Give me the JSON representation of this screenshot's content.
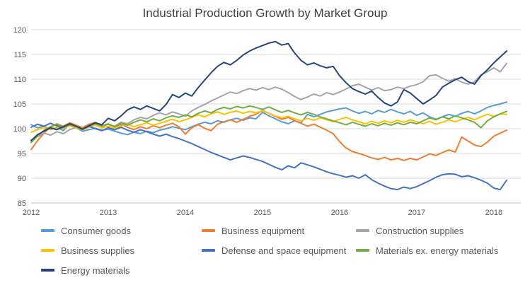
{
  "chart_data": {
    "type": "line",
    "title": "Industrial Production Growth by Market Group",
    "x_unit": "monthly, decimal years",
    "x_start_year": 2012,
    "points_per_year": 12,
    "xlim": [
      2012,
      2018.35
    ],
    "ylim": [
      85,
      120
    ],
    "y_ticks": [
      85,
      90,
      95,
      100,
      105,
      110,
      115,
      120
    ],
    "x_ticks": [
      2012,
      2013,
      2014,
      2015,
      2016,
      2017,
      2018
    ],
    "grid": "horizontal",
    "grid_color": "#D9D9D9",
    "axis_color": "#BFBFBF",
    "legend_position": "bottom",
    "series": [
      {
        "id": "consumer-goods",
        "name": "Consumer goods",
        "color": "#5B9BD5",
        "values": [
          100.8,
          100.2,
          100.5,
          99.8,
          100.3,
          99.6,
          100.9,
          100.2,
          99.5,
          99.8,
          100.1,
          99.7,
          99.9,
          99.5,
          99.1,
          98.8,
          99.3,
          99.0,
          99.5,
          99.2,
          99.7,
          100.0,
          100.4,
          100.1,
          99.8,
          100.4,
          100.9,
          101.3,
          101.0,
          101.6,
          101.3,
          101.8,
          102.1,
          101.7,
          102.2,
          102.0,
          103.3,
          102.6,
          102.0,
          101.4,
          101.0,
          101.6,
          101.2,
          102.9,
          102.4,
          102.9,
          103.4,
          103.7,
          104.0,
          104.2,
          103.6,
          103.1,
          103.5,
          103.0,
          103.7,
          103.3,
          103.9,
          103.4,
          103.0,
          103.5,
          102.7,
          103.2,
          102.4,
          101.9,
          102.4,
          102.9,
          102.5,
          103.1,
          103.5,
          103.0,
          103.6,
          104.3,
          104.7,
          105.0,
          105.4
        ]
      },
      {
        "id": "business-equipment",
        "name": "Business equipment",
        "color": "#ED7D31",
        "values": [
          95.8,
          97.6,
          99.1,
          100.3,
          101.0,
          100.5,
          101.2,
          100.7,
          100.2,
          100.9,
          101.3,
          100.6,
          101.0,
          100.4,
          100.9,
          100.3,
          99.8,
          100.4,
          100.0,
          100.6,
          100.2,
          100.7,
          101.1,
          100.4,
          98.9,
          100.2,
          100.8,
          100.1,
          99.6,
          100.9,
          101.4,
          101.8,
          101.3,
          101.9,
          102.5,
          102.9,
          103.7,
          103.1,
          102.5,
          101.9,
          102.3,
          101.6,
          101.1,
          100.5,
          100.9,
          100.3,
          99.7,
          99.0,
          97.4,
          96.1,
          95.4,
          95.0,
          94.6,
          94.1,
          93.8,
          94.2,
          93.7,
          94.0,
          93.6,
          94.0,
          93.7,
          94.3,
          94.9,
          94.6,
          95.2,
          95.7,
          95.3,
          98.3,
          97.5,
          96.7,
          96.4,
          97.3,
          98.5,
          99.1,
          99.7
        ]
      },
      {
        "id": "construction-supplies",
        "name": "Construction supplies",
        "color": "#A5A5A5",
        "values": [
          97.7,
          98.4,
          99.1,
          98.7,
          99.4,
          99.0,
          99.8,
          100.3,
          99.9,
          100.5,
          101.0,
          100.6,
          100.9,
          100.5,
          101.3,
          101.0,
          101.8,
          102.3,
          102.0,
          102.7,
          103.2,
          102.8,
          103.4,
          103.0,
          102.5,
          103.6,
          104.3,
          104.9,
          105.6,
          106.2,
          106.8,
          107.4,
          107.1,
          107.7,
          108.1,
          107.8,
          108.3,
          107.9,
          108.4,
          108.0,
          107.3,
          106.5,
          105.9,
          106.4,
          107.0,
          106.6,
          107.3,
          106.9,
          107.4,
          108.0,
          108.7,
          109.0,
          108.4,
          107.8,
          108.3,
          107.7,
          107.9,
          108.4,
          108.1,
          108.6,
          108.9,
          109.5,
          110.7,
          110.9,
          110.2,
          109.6,
          110.1,
          109.4,
          109.0,
          109.5,
          110.9,
          111.5,
          112.3,
          111.5,
          113.2
        ]
      },
      {
        "id": "business-supplies",
        "name": "Business supplies",
        "color": "#FFC000",
        "values": [
          99.3,
          99.8,
          100.3,
          99.9,
          100.4,
          100.0,
          100.6,
          100.2,
          99.8,
          100.3,
          100.7,
          100.2,
          100.5,
          100.1,
          100.6,
          100.9,
          100.4,
          100.8,
          101.2,
          100.7,
          101.1,
          101.5,
          101.9,
          101.4,
          101.8,
          102.3,
          102.8,
          102.4,
          103.0,
          103.4,
          102.9,
          103.3,
          103.6,
          103.1,
          103.5,
          103.2,
          103.6,
          103.1,
          102.6,
          102.2,
          102.5,
          102.0,
          101.6,
          102.1,
          101.7,
          102.2,
          101.8,
          101.4,
          101.9,
          102.3,
          101.8,
          101.4,
          101.0,
          101.5,
          101.1,
          101.6,
          101.2,
          101.7,
          101.3,
          101.8,
          101.4,
          101.0,
          101.5,
          100.9,
          101.3,
          101.8,
          101.4,
          101.9,
          102.3,
          101.8,
          102.4,
          102.9,
          102.5,
          103.0,
          102.9
        ]
      },
      {
        "id": "defense-space-equipment",
        "name": "Defense and space equipment",
        "color": "#4472C4",
        "values": [
          100.3,
          100.9,
          100.5,
          101.1,
          100.6,
          100.2,
          100.8,
          100.4,
          99.9,
          100.5,
          100.0,
          99.6,
          100.2,
          99.8,
          100.3,
          99.7,
          99.3,
          99.8,
          99.4,
          98.9,
          98.5,
          98.9,
          98.4,
          98.0,
          97.5,
          97.0,
          96.4,
          95.8,
          95.2,
          94.7,
          94.2,
          93.7,
          94.1,
          94.5,
          94.2,
          93.8,
          93.4,
          92.8,
          92.2,
          91.7,
          92.5,
          92.1,
          93.1,
          92.7,
          92.3,
          91.8,
          91.3,
          90.9,
          90.6,
          90.2,
          90.5,
          90.0,
          90.7,
          89.7,
          89.0,
          88.4,
          87.9,
          87.7,
          88.2,
          87.9,
          88.3,
          88.9,
          89.5,
          90.2,
          90.7,
          90.9,
          90.8,
          90.3,
          90.5,
          90.1,
          89.6,
          89.0,
          88.0,
          87.7,
          89.6
        ]
      },
      {
        "id": "materials-ex-energy",
        "name": "Materials ex. energy materials",
        "color": "#70AD47",
        "values": [
          97.2,
          98.5,
          99.7,
          100.4,
          100.9,
          100.3,
          100.8,
          100.4,
          99.9,
          100.6,
          101.0,
          100.5,
          100.9,
          100.4,
          101.1,
          100.7,
          101.3,
          101.8,
          101.4,
          102.0,
          101.6,
          102.2,
          102.6,
          102.3,
          102.8,
          102.4,
          103.1,
          103.6,
          103.2,
          103.9,
          104.3,
          104.0,
          104.5,
          104.2,
          104.6,
          104.3,
          103.9,
          104.4,
          103.8,
          103.3,
          103.7,
          103.2,
          102.8,
          103.3,
          102.9,
          102.4,
          102.0,
          101.6,
          101.2,
          100.8,
          101.3,
          100.9,
          100.5,
          101.0,
          100.6,
          101.1,
          100.7,
          101.2,
          100.8,
          101.3,
          101.0,
          101.6,
          102.2,
          101.8,
          102.4,
          102.0,
          102.6,
          102.2,
          101.8,
          101.3,
          100.2,
          101.6,
          102.4,
          103.0,
          103.5
        ]
      },
      {
        "id": "energy-materials",
        "name": "Energy materials",
        "color": "#264478",
        "values": [
          97.6,
          98.8,
          99.5,
          100.2,
          99.8,
          100.4,
          101.0,
          100.5,
          99.9,
          100.6,
          101.2,
          100.8,
          102.1,
          101.6,
          102.6,
          103.8,
          104.4,
          103.9,
          104.6,
          104.1,
          103.6,
          104.9,
          106.9,
          106.3,
          107.2,
          106.6,
          108.3,
          109.8,
          111.3,
          112.6,
          113.4,
          112.9,
          113.8,
          114.9,
          115.7,
          116.3,
          116.8,
          117.3,
          117.6,
          116.9,
          117.2,
          115.3,
          113.8,
          112.9,
          113.3,
          112.7,
          112.3,
          112.6,
          110.7,
          109.3,
          108.1,
          107.5,
          107.0,
          107.6,
          106.3,
          105.2,
          104.6,
          105.4,
          107.9,
          107.2,
          106.1,
          105.0,
          105.8,
          106.7,
          108.4,
          109.2,
          109.9,
          110.4,
          109.5,
          109.0,
          110.7,
          111.9,
          113.3,
          114.5,
          115.7
        ]
      }
    ]
  }
}
